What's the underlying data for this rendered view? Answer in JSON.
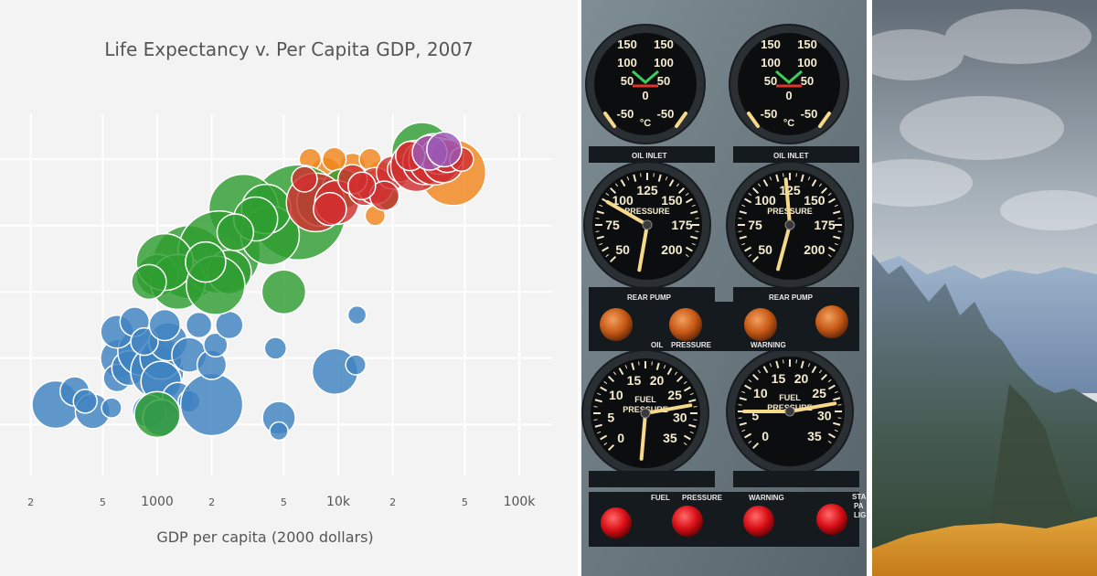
{
  "chart_data": {
    "type": "scatter",
    "title": "Life Expectancy v. Per Capita GDP, 2007",
    "xlabel": "GDP per capita (2000 dollars)",
    "ylabel": "",
    "x_scale": "log",
    "xlim": [
      150,
      100000
    ],
    "ylim": [
      35,
      90
    ],
    "grid": true,
    "x_tick_labels": [
      {
        "value": 200,
        "label": "2"
      },
      {
        "value": 500,
        "label": "5"
      },
      {
        "value": 1000,
        "label": "1000"
      },
      {
        "value": 2000,
        "label": "2"
      },
      {
        "value": 5000,
        "label": "5"
      },
      {
        "value": 10000,
        "label": "10k"
      },
      {
        "value": 20000,
        "label": "2"
      },
      {
        "value": 50000,
        "label": "5"
      },
      {
        "value": 100000,
        "label": "100k"
      }
    ],
    "y_gridlines": [
      40,
      50,
      60,
      70,
      80
    ],
    "series": [
      {
        "color": "#3f83c1",
        "points": [
          [
            275,
            43.0,
            26
          ],
          [
            350,
            45.0,
            16
          ],
          [
            440,
            42.0,
            19
          ],
          [
            400,
            43.5,
            13
          ],
          [
            560,
            42.5,
            11
          ],
          [
            620,
            50.0,
            21
          ],
          [
            600,
            47.0,
            15
          ],
          [
            700,
            48.5,
            19
          ],
          [
            820,
            51.0,
            26
          ],
          [
            1000,
            48.0,
            29
          ],
          [
            1050,
            50.0,
            23
          ],
          [
            1050,
            46.5,
            22
          ],
          [
            1150,
            52.5,
            21
          ],
          [
            1500,
            50.5,
            19
          ],
          [
            1300,
            44.0,
            17
          ],
          [
            900,
            42.0,
            18
          ],
          [
            1500,
            43.5,
            12
          ],
          [
            1050,
            41.0,
            20
          ],
          [
            2000,
            43.0,
            34
          ],
          [
            2000,
            49.0,
            16
          ],
          [
            2100,
            52.0,
            13
          ],
          [
            2500,
            55.0,
            15
          ],
          [
            4500,
            51.5,
            12
          ],
          [
            4700,
            41.0,
            18
          ],
          [
            4700,
            39.0,
            10
          ],
          [
            9600,
            48.0,
            25
          ],
          [
            12500,
            49.0,
            11
          ],
          [
            12700,
            56.5,
            10
          ],
          [
            600,
            54.0,
            18
          ],
          [
            750,
            55.5,
            16
          ],
          [
            850,
            52.5,
            15
          ],
          [
            1100,
            55.0,
            17
          ],
          [
            1700,
            55.0,
            14
          ]
        ]
      },
      {
        "color": "#f0861c",
        "points": [
          [
            43000,
            78.0,
            36
          ],
          [
            11000,
            76.5,
            16
          ],
          [
            8500,
            78.0,
            17
          ],
          [
            17000,
            78.0,
            13
          ],
          [
            12000,
            79.0,
            14
          ],
          [
            9500,
            80.0,
            13
          ],
          [
            15000,
            80.0,
            12
          ],
          [
            24000,
            80.0,
            11
          ],
          [
            16000,
            71.5,
            11
          ],
          [
            7000,
            80.0,
            12
          ]
        ]
      },
      {
        "color": "#2f9e31",
        "points": [
          [
            29000,
            81.0,
            33
          ],
          [
            6000,
            72.0,
            52
          ],
          [
            3000,
            72.5,
            38
          ],
          [
            1500,
            64.5,
            40
          ],
          [
            2200,
            66.0,
            45
          ],
          [
            1000,
            62.5,
            23
          ],
          [
            1300,
            61.5,
            30
          ],
          [
            2500,
            63.0,
            24
          ],
          [
            4200,
            68.5,
            32
          ],
          [
            4000,
            72.5,
            27
          ],
          [
            3500,
            71.0,
            24
          ],
          [
            2700,
            69.0,
            20
          ],
          [
            5000,
            60.0,
            24
          ],
          [
            1100,
            64.5,
            31
          ],
          [
            2100,
            61.0,
            32
          ],
          [
            900,
            61.5,
            19
          ],
          [
            1850,
            64.5,
            22
          ],
          [
            1000,
            41.5,
            25
          ],
          [
            8000,
            73.5,
            26
          ],
          [
            10500,
            75.5,
            22
          ],
          [
            19000,
            74.0,
            12
          ]
        ]
      },
      {
        "color": "#d13030",
        "points": [
          [
            7500,
            73.5,
            32
          ],
          [
            9800,
            73.5,
            24
          ],
          [
            14000,
            75.5,
            18
          ],
          [
            16000,
            76.0,
            20
          ],
          [
            20000,
            78.0,
            18
          ],
          [
            22000,
            78.5,
            14
          ],
          [
            27000,
            79.0,
            28
          ],
          [
            30000,
            79.5,
            24
          ],
          [
            34000,
            80.0,
            28
          ],
          [
            36000,
            80.5,
            20
          ],
          [
            38000,
            79.5,
            22
          ],
          [
            40000,
            80.5,
            18
          ],
          [
            48000,
            80.0,
            13
          ],
          [
            25000,
            80.5,
            16
          ],
          [
            18000,
            74.5,
            16
          ],
          [
            12000,
            77.0,
            16
          ],
          [
            13500,
            76.0,
            15
          ],
          [
            6500,
            77.0,
            14
          ],
          [
            9000,
            72.5,
            18
          ]
        ]
      },
      {
        "color": "#9b59b6",
        "points": [
          [
            32000,
            81.0,
            19
          ],
          [
            38500,
            81.5,
            19
          ]
        ]
      }
    ]
  },
  "photos": [
    {
      "label": "aircraft-gauge-panel-photo"
    },
    {
      "label": "mountain-landscape-photo"
    }
  ],
  "gauge_panel": {
    "oil_inlet_label": "OIL INLET",
    "rear_pump_label": "REAR PUMP",
    "oil_pressure_label": "OIL",
    "pressure_label": "PRESSURE",
    "warning_label": "WARNING",
    "fuel_label": "FUEL",
    "pressure_label_fuel": "PRESSURE",
    "warning_label_fuel": "WARNING",
    "temp_unit": "°C",
    "pressure_face_label": "PRESSURE",
    "fuel_pressure_face_fuel": "FUEL",
    "fuel_pressure_face_pressure": "PRESSURE",
    "temp_scale": [
      "150",
      "100",
      "50",
      "0",
      "-50"
    ],
    "pressure_scale": [
      "50",
      "75",
      "100",
      "125",
      "150",
      "175",
      "200",
      "25"
    ],
    "fuel_scale": [
      "10",
      "15",
      "20",
      "25",
      "30",
      "35",
      "0",
      "5"
    ],
    "temp_gauge_index": [
      "1",
      "2",
      "3",
      "4"
    ],
    "corner_marks": [
      "1",
      "2",
      "3",
      "4"
    ],
    "side_text": [
      "STA",
      "PA",
      "LIG"
    ]
  }
}
